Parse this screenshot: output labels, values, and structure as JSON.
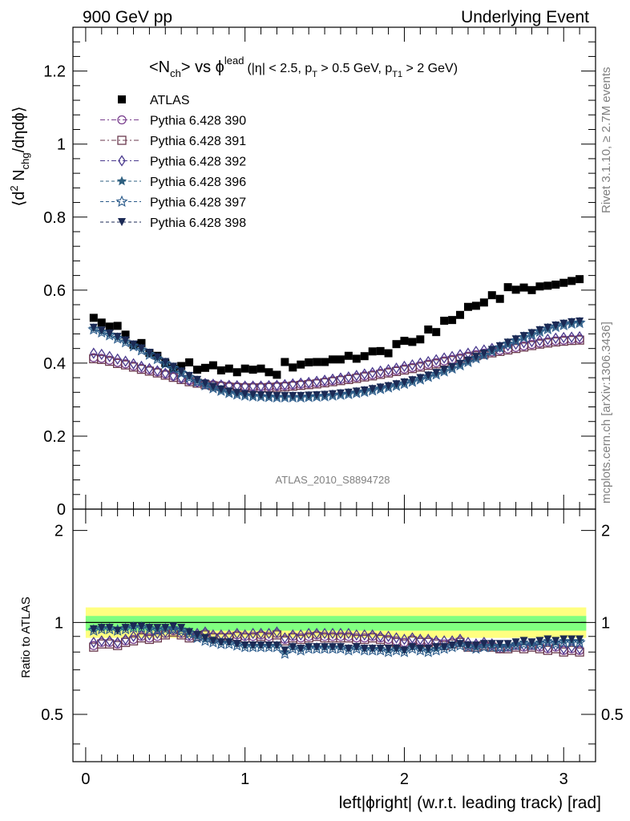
{
  "header": {
    "left": "900 GeV pp",
    "right": "Underlying Event"
  },
  "main_title": {
    "prefix": "<N",
    "sub1": "ch",
    "mid": "> vs ϕ",
    "sup1": "lead",
    "cond_a": "(|η| < 2.5, p",
    "sub2": "T",
    "cond_b": " > 0.5 GeV, p",
    "sub3": "T1",
    "cond_c": " > 2 GeV)"
  },
  "ylabel_top": {
    "a": "⟨d",
    "sup": "2",
    "b": " N",
    "sub": "chg",
    "c": "/dηdϕ⟩"
  },
  "ylabel_bottom": "Ratio to ATLAS",
  "xlabel": "left|ϕright| (w.r.t. leading track) [rad]",
  "right_side_1": "Rivet 3.1.10, ≥ 2.7M events",
  "right_side_2": "mcplots.cern.ch [arXiv:1306.3436]",
  "analysis_label": "ATLAS_2010_S8894728",
  "colors": {
    "data": "#000000",
    "p390": "#7a3f8e",
    "p391": "#6b3a4e",
    "p392": "#4a3a8e",
    "p396": "#2f6080",
    "p397": "#2a5a8a",
    "p398": "#1b2a55",
    "band_yellow": "#ffff80",
    "band_green": "#80ff80"
  },
  "chart_data": [
    {
      "type": "scatter",
      "xlim": [
        -0.08,
        3.2
      ],
      "ylim": [
        0,
        1.32
      ],
      "yticks": [
        0,
        0.2,
        0.4,
        0.6,
        0.8,
        1,
        1.2
      ],
      "x": [
        0.05,
        0.1,
        0.15,
        0.2,
        0.25,
        0.3,
        0.35,
        0.4,
        0.45,
        0.5,
        0.55,
        0.6,
        0.65,
        0.7,
        0.75,
        0.8,
        0.85,
        0.9,
        0.95,
        1.0,
        1.05,
        1.1,
        1.15,
        1.2,
        1.25,
        1.3,
        1.35,
        1.4,
        1.45,
        1.5,
        1.55,
        1.6,
        1.65,
        1.7,
        1.75,
        1.8,
        1.85,
        1.9,
        1.95,
        2.0,
        2.05,
        2.1,
        2.15,
        2.2,
        2.25,
        2.3,
        2.35,
        2.4,
        2.45,
        2.5,
        2.55,
        2.6,
        2.65,
        2.7,
        2.75,
        2.8,
        2.85,
        2.9,
        2.95,
        3.0,
        3.05,
        3.1
      ],
      "series": [
        {
          "name": "ATLAS",
          "marker": "square",
          "values": [
            0.524,
            0.511,
            0.5,
            0.502,
            0.478,
            0.45,
            0.455,
            0.428,
            0.42,
            0.4,
            0.385,
            0.392,
            0.402,
            0.382,
            0.387,
            0.394,
            0.38,
            0.385,
            0.375,
            0.385,
            0.382,
            0.385,
            0.375,
            0.368,
            0.403,
            0.388,
            0.396,
            0.402,
            0.403,
            0.403,
            0.41,
            0.41,
            0.42,
            0.412,
            0.419,
            0.432,
            0.433,
            0.427,
            0.452,
            0.461,
            0.458,
            0.465,
            0.492,
            0.485,
            0.516,
            0.518,
            0.532,
            0.554,
            0.557,
            0.566,
            0.586,
            0.576,
            0.608,
            0.601,
            0.607,
            0.6,
            0.61,
            0.612,
            0.615,
            0.62,
            0.625,
            0.63
          ]
        },
        {
          "name": "Pythia 6.428 390",
          "marker": "circle-open",
          "values": [
            0.415,
            0.413,
            0.408,
            0.402,
            0.398,
            0.392,
            0.386,
            0.381,
            0.376,
            0.37,
            0.364,
            0.358,
            0.352,
            0.348,
            0.344,
            0.341,
            0.339,
            0.337,
            0.336,
            0.335,
            0.335,
            0.335,
            0.336,
            0.337,
            0.338,
            0.34,
            0.342,
            0.344,
            0.346,
            0.349,
            0.352,
            0.355,
            0.358,
            0.361,
            0.365,
            0.368,
            0.372,
            0.376,
            0.38,
            0.384,
            0.388,
            0.392,
            0.397,
            0.401,
            0.406,
            0.41,
            0.414,
            0.419,
            0.423,
            0.427,
            0.431,
            0.435,
            0.439,
            0.443,
            0.447,
            0.451,
            0.455,
            0.458,
            0.461,
            0.463,
            0.465,
            0.466
          ]
        },
        {
          "name": "Pythia 6.428 391",
          "marker": "square-open",
          "values": [
            0.412,
            0.41,
            0.405,
            0.399,
            0.395,
            0.389,
            0.383,
            0.378,
            0.373,
            0.367,
            0.361,
            0.355,
            0.349,
            0.345,
            0.341,
            0.338,
            0.336,
            0.334,
            0.333,
            0.332,
            0.332,
            0.332,
            0.333,
            0.334,
            0.335,
            0.337,
            0.339,
            0.341,
            0.343,
            0.346,
            0.349,
            0.352,
            0.355,
            0.358,
            0.362,
            0.365,
            0.369,
            0.373,
            0.377,
            0.381,
            0.385,
            0.389,
            0.394,
            0.398,
            0.403,
            0.407,
            0.411,
            0.416,
            0.42,
            0.424,
            0.428,
            0.432,
            0.436,
            0.44,
            0.444,
            0.448,
            0.452,
            0.455,
            0.458,
            0.46,
            0.462,
            0.463
          ]
        },
        {
          "name": "Pythia 6.428 392",
          "marker": "diamond-open",
          "values": [
            0.427,
            0.424,
            0.418,
            0.411,
            0.405,
            0.398,
            0.391,
            0.385,
            0.379,
            0.372,
            0.365,
            0.359,
            0.353,
            0.348,
            0.344,
            0.342,
            0.34,
            0.339,
            0.338,
            0.337,
            0.337,
            0.337,
            0.338,
            0.339,
            0.341,
            0.343,
            0.345,
            0.347,
            0.35,
            0.353,
            0.356,
            0.359,
            0.362,
            0.366,
            0.37,
            0.374,
            0.378,
            0.382,
            0.386,
            0.391,
            0.395,
            0.4,
            0.404,
            0.409,
            0.414,
            0.418,
            0.423,
            0.427,
            0.432,
            0.436,
            0.44,
            0.444,
            0.448,
            0.452,
            0.456,
            0.459,
            0.462,
            0.465,
            0.468,
            0.47,
            0.471,
            0.472
          ]
        },
        {
          "name": "Pythia 6.428 396",
          "marker": "star",
          "values": [
            0.495,
            0.487,
            0.479,
            0.47,
            0.46,
            0.449,
            0.438,
            0.426,
            0.414,
            0.401,
            0.388,
            0.375,
            0.363,
            0.352,
            0.342,
            0.333,
            0.326,
            0.32,
            0.316,
            0.313,
            0.311,
            0.31,
            0.309,
            0.308,
            0.308,
            0.308,
            0.308,
            0.309,
            0.31,
            0.311,
            0.313,
            0.315,
            0.317,
            0.32,
            0.323,
            0.327,
            0.331,
            0.335,
            0.34,
            0.345,
            0.351,
            0.357,
            0.364,
            0.371,
            0.379,
            0.387,
            0.396,
            0.405,
            0.415,
            0.424,
            0.434,
            0.444,
            0.454,
            0.463,
            0.472,
            0.48,
            0.488,
            0.495,
            0.501,
            0.506,
            0.51,
            0.512
          ]
        },
        {
          "name": "Pythia 6.428 397",
          "marker": "star-open",
          "values": [
            0.492,
            0.484,
            0.476,
            0.467,
            0.457,
            0.446,
            0.435,
            0.423,
            0.411,
            0.398,
            0.385,
            0.372,
            0.36,
            0.349,
            0.339,
            0.331,
            0.324,
            0.318,
            0.314,
            0.311,
            0.309,
            0.308,
            0.307,
            0.306,
            0.306,
            0.306,
            0.306,
            0.307,
            0.308,
            0.309,
            0.311,
            0.313,
            0.315,
            0.318,
            0.321,
            0.325,
            0.329,
            0.333,
            0.338,
            0.343,
            0.349,
            0.355,
            0.362,
            0.369,
            0.377,
            0.385,
            0.394,
            0.403,
            0.413,
            0.422,
            0.432,
            0.442,
            0.452,
            0.461,
            0.47,
            0.478,
            0.486,
            0.493,
            0.499,
            0.504,
            0.508,
            0.51
          ]
        },
        {
          "name": "Pythia 6.428 398",
          "marker": "triangle-down",
          "values": [
            0.497,
            0.489,
            0.481,
            0.472,
            0.462,
            0.451,
            0.44,
            0.428,
            0.416,
            0.403,
            0.39,
            0.377,
            0.365,
            0.354,
            0.344,
            0.335,
            0.328,
            0.322,
            0.318,
            0.315,
            0.313,
            0.312,
            0.311,
            0.31,
            0.31,
            0.31,
            0.31,
            0.311,
            0.312,
            0.313,
            0.315,
            0.317,
            0.319,
            0.322,
            0.325,
            0.329,
            0.333,
            0.337,
            0.342,
            0.347,
            0.353,
            0.359,
            0.366,
            0.373,
            0.381,
            0.389,
            0.398,
            0.407,
            0.417,
            0.426,
            0.436,
            0.446,
            0.456,
            0.465,
            0.474,
            0.482,
            0.49,
            0.497,
            0.503,
            0.508,
            0.512,
            0.514
          ]
        }
      ]
    },
    {
      "type": "scatter",
      "ylabel": "Ratio to ATLAS",
      "xlabel": "left|ϕright| (w.r.t. leading track) [rad]",
      "xlim": [
        -0.08,
        3.2
      ],
      "xticks": [
        0,
        1,
        2,
        3
      ],
      "ylim": [
        0.35,
        2.35
      ],
      "yticks": [
        0.5,
        1,
        2
      ],
      "band_yellow": [
        0.89,
        1.12
      ],
      "band_green": [
        0.94,
        1.05
      ],
      "x": [
        0.05,
        0.1,
        0.15,
        0.2,
        0.25,
        0.3,
        0.35,
        0.4,
        0.45,
        0.5,
        0.55,
        0.6,
        0.65,
        0.7,
        0.75,
        0.8,
        0.85,
        0.9,
        0.95,
        1.0,
        1.05,
        1.1,
        1.15,
        1.2,
        1.25,
        1.3,
        1.35,
        1.4,
        1.45,
        1.5,
        1.55,
        1.6,
        1.65,
        1.7,
        1.75,
        1.8,
        1.85,
        1.9,
        1.95,
        2.0,
        2.05,
        2.1,
        2.15,
        2.2,
        2.25,
        2.3,
        2.35,
        2.4,
        2.45,
        2.5,
        2.55,
        2.6,
        2.65,
        2.7,
        2.75,
        2.8,
        2.85,
        2.9,
        2.95,
        3.0,
        3.05,
        3.1
      ],
      "series": [
        {
          "name": "Pythia 6.428 390",
          "values": [
            0.84,
            0.86,
            0.86,
            0.85,
            0.87,
            0.88,
            0.9,
            0.89,
            0.9,
            0.92,
            0.94,
            0.92,
            0.9,
            0.91,
            0.92,
            0.9,
            0.9,
            0.9,
            0.91,
            0.9,
            0.9,
            0.91,
            0.9,
            0.92,
            0.88,
            0.9,
            0.89,
            0.9,
            0.91,
            0.9,
            0.9,
            0.9,
            0.9,
            0.89,
            0.89,
            0.9,
            0.89,
            0.88,
            0.87,
            0.86,
            0.88,
            0.87,
            0.87,
            0.86,
            0.85,
            0.86,
            0.87,
            0.84,
            0.84,
            0.85,
            0.84,
            0.82,
            0.83,
            0.84,
            0.83,
            0.84,
            0.83,
            0.82,
            0.83,
            0.81,
            0.82,
            0.81
          ]
        },
        {
          "name": "Pythia 6.428 391",
          "values": [
            0.83,
            0.85,
            0.85,
            0.84,
            0.86,
            0.87,
            0.89,
            0.88,
            0.89,
            0.91,
            0.93,
            0.91,
            0.89,
            0.9,
            0.91,
            0.89,
            0.89,
            0.89,
            0.9,
            0.89,
            0.89,
            0.9,
            0.89,
            0.91,
            0.87,
            0.89,
            0.88,
            0.89,
            0.9,
            0.89,
            0.89,
            0.89,
            0.89,
            0.88,
            0.88,
            0.89,
            0.88,
            0.87,
            0.86,
            0.85,
            0.87,
            0.86,
            0.86,
            0.85,
            0.84,
            0.85,
            0.86,
            0.83,
            0.83,
            0.84,
            0.83,
            0.82,
            0.82,
            0.83,
            0.82,
            0.83,
            0.82,
            0.81,
            0.82,
            0.8,
            0.81,
            0.8
          ]
        },
        {
          "name": "Pythia 6.428 392",
          "values": [
            0.86,
            0.87,
            0.87,
            0.86,
            0.88,
            0.9,
            0.91,
            0.91,
            0.92,
            0.93,
            0.95,
            0.93,
            0.91,
            0.92,
            0.93,
            0.91,
            0.91,
            0.91,
            0.92,
            0.91,
            0.92,
            0.92,
            0.92,
            0.93,
            0.89,
            0.91,
            0.91,
            0.92,
            0.92,
            0.92,
            0.92,
            0.92,
            0.92,
            0.91,
            0.91,
            0.91,
            0.9,
            0.9,
            0.89,
            0.88,
            0.89,
            0.88,
            0.88,
            0.87,
            0.87,
            0.87,
            0.88,
            0.86,
            0.85,
            0.86,
            0.85,
            0.83,
            0.84,
            0.85,
            0.84,
            0.85,
            0.84,
            0.83,
            0.84,
            0.82,
            0.83,
            0.82
          ]
        },
        {
          "name": "Pythia 6.428 396",
          "values": [
            0.95,
            0.96,
            0.96,
            0.95,
            0.96,
            0.97,
            0.97,
            0.96,
            0.95,
            0.96,
            0.96,
            0.95,
            0.93,
            0.9,
            0.88,
            0.87,
            0.86,
            0.86,
            0.85,
            0.84,
            0.84,
            0.84,
            0.84,
            0.84,
            0.8,
            0.83,
            0.82,
            0.83,
            0.83,
            0.83,
            0.83,
            0.83,
            0.82,
            0.83,
            0.82,
            0.82,
            0.82,
            0.81,
            0.82,
            0.81,
            0.83,
            0.82,
            0.81,
            0.82,
            0.83,
            0.84,
            0.85,
            0.84,
            0.83,
            0.84,
            0.84,
            0.84,
            0.84,
            0.85,
            0.86,
            0.85,
            0.86,
            0.87,
            0.86,
            0.87,
            0.87,
            0.87
          ]
        },
        {
          "name": "Pythia 6.428 397",
          "values": [
            0.94,
            0.95,
            0.95,
            0.94,
            0.95,
            0.96,
            0.96,
            0.95,
            0.94,
            0.95,
            0.95,
            0.94,
            0.92,
            0.89,
            0.87,
            0.86,
            0.85,
            0.85,
            0.84,
            0.83,
            0.83,
            0.83,
            0.83,
            0.83,
            0.79,
            0.82,
            0.81,
            0.82,
            0.82,
            0.82,
            0.82,
            0.82,
            0.81,
            0.82,
            0.81,
            0.81,
            0.81,
            0.8,
            0.81,
            0.8,
            0.82,
            0.81,
            0.8,
            0.81,
            0.82,
            0.83,
            0.84,
            0.83,
            0.82,
            0.83,
            0.83,
            0.83,
            0.83,
            0.84,
            0.85,
            0.84,
            0.85,
            0.86,
            0.85,
            0.86,
            0.86,
            0.86
          ]
        },
        {
          "name": "Pythia 6.428 398",
          "values": [
            0.95,
            0.96,
            0.96,
            0.94,
            0.96,
            0.97,
            0.97,
            0.96,
            0.96,
            0.96,
            0.97,
            0.96,
            0.93,
            0.91,
            0.89,
            0.87,
            0.86,
            0.86,
            0.85,
            0.84,
            0.84,
            0.84,
            0.84,
            0.84,
            0.81,
            0.83,
            0.82,
            0.83,
            0.83,
            0.83,
            0.83,
            0.83,
            0.82,
            0.83,
            0.82,
            0.82,
            0.82,
            0.82,
            0.82,
            0.81,
            0.83,
            0.82,
            0.82,
            0.83,
            0.83,
            0.84,
            0.85,
            0.84,
            0.84,
            0.85,
            0.85,
            0.85,
            0.85,
            0.86,
            0.87,
            0.86,
            0.87,
            0.88,
            0.87,
            0.88,
            0.88,
            0.88
          ]
        }
      ]
    }
  ]
}
